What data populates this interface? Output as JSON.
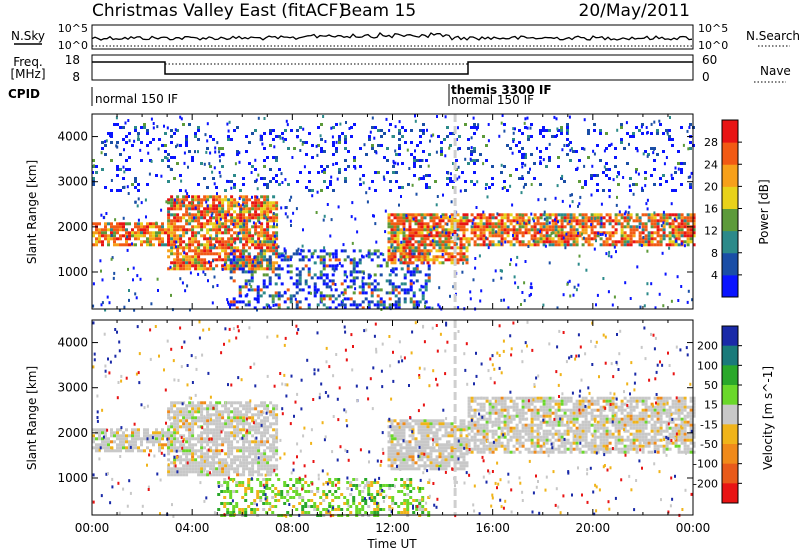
{
  "header": {
    "station": "Christmas Valley East (fitACF)",
    "beam": "Beam 15",
    "date": "20/May/2011"
  },
  "top_panels": {
    "nsky_label": "N.Sky",
    "nsky_ticks": [
      "10^5",
      "10^0"
    ],
    "nsearch_label": "N.Search",
    "nsearch_ticks": [
      "10^5",
      "10^0"
    ],
    "freq_label_1": "Freq.",
    "freq_label_2": "[MHz]",
    "freq_ticks": [
      "18",
      "8"
    ],
    "nave_label": "Nave",
    "nave_ticks": [
      "60",
      "0"
    ],
    "cpid_label": "CPID",
    "cpid_segments": [
      {
        "start_hour": 0.0,
        "label": "normal 150 IF"
      },
      {
        "start_hour": 14.5,
        "label": "themis 3300 IF"
      },
      {
        "start_hour": 14.5,
        "label": "normal 150 IF"
      }
    ]
  },
  "chart_data": [
    {
      "type": "heatmap",
      "name": "power",
      "ylabel": "Slant Range [km]",
      "xlim": [
        0,
        24
      ],
      "ylim": [
        180,
        4500
      ],
      "yticks": [
        "1000",
        "2000",
        "3000",
        "4000"
      ],
      "colorbar_label": "Power [dB]",
      "colorbar_ticks": [
        "4",
        "8",
        "12",
        "16",
        "20",
        "24",
        "28"
      ],
      "colorbar_colors": [
        "#0a14ff",
        "#1a4ea6",
        "#2c8a8a",
        "#5c9a3a",
        "#e8d21a",
        "#f7a01a",
        "#f25a14",
        "#e81414"
      ],
      "features": [
        {
          "start_hour": 0.0,
          "end_hour": 3.0,
          "range_km": [
            1600,
            2100
          ],
          "level": "high"
        },
        {
          "start_hour": 3.0,
          "end_hour": 7.4,
          "range_km": [
            1100,
            2700
          ],
          "level": "high"
        },
        {
          "start_hour": 5.5,
          "end_hour": 13.5,
          "range_km": [
            200,
            1500
          ],
          "level": "medium"
        },
        {
          "start_hour": 11.8,
          "end_hour": 15.0,
          "range_km": [
            1200,
            2300
          ],
          "level": "high"
        },
        {
          "start_hour": 15.0,
          "end_hour": 24.0,
          "range_km": [
            1600,
            2300
          ],
          "level": "high"
        },
        {
          "start_hour": 0.0,
          "end_hour": 24.0,
          "range_km": [
            2800,
            4300
          ],
          "level": "low"
        }
      ]
    },
    {
      "type": "heatmap",
      "name": "velocity",
      "ylabel": "Slant Range [km]",
      "xlim": [
        0,
        24
      ],
      "ylim": [
        180,
        4500
      ],
      "yticks": [
        "1000",
        "2000",
        "3000",
        "4000"
      ],
      "xticks": [
        "00:00",
        "04:00",
        "08:00",
        "12:00",
        "16:00",
        "20:00",
        "00:00"
      ],
      "xlabel": "Time UT",
      "colorbar_label": "Velocity [m s^-1]",
      "colorbar_ticks": [
        "200",
        "100",
        "50",
        "15",
        "-15",
        "-50",
        "-100",
        "-200"
      ],
      "colorbar_colors": [
        "#1a2aa8",
        "#1a7a7a",
        "#2aa82a",
        "#6ad82a",
        "#c8c8c8",
        "#f0b41a",
        "#f08a1a",
        "#e85a1a",
        "#e81414"
      ],
      "features": [
        {
          "start_hour": 0.0,
          "end_hour": 3.0,
          "range_km": [
            1600,
            2100
          ],
          "level": "ground"
        },
        {
          "start_hour": 3.0,
          "end_hour": 7.4,
          "range_km": [
            1100,
            2700
          ],
          "level": "ground"
        },
        {
          "start_hour": 5.0,
          "end_hour": 13.5,
          "range_km": [
            200,
            1000
          ],
          "level": "positive"
        },
        {
          "start_hour": 11.8,
          "end_hour": 15.0,
          "range_km": [
            1200,
            2300
          ],
          "level": "ground"
        },
        {
          "start_hour": 15.0,
          "end_hour": 24.0,
          "range_km": [
            1600,
            2800
          ],
          "level": "ground"
        }
      ]
    }
  ]
}
